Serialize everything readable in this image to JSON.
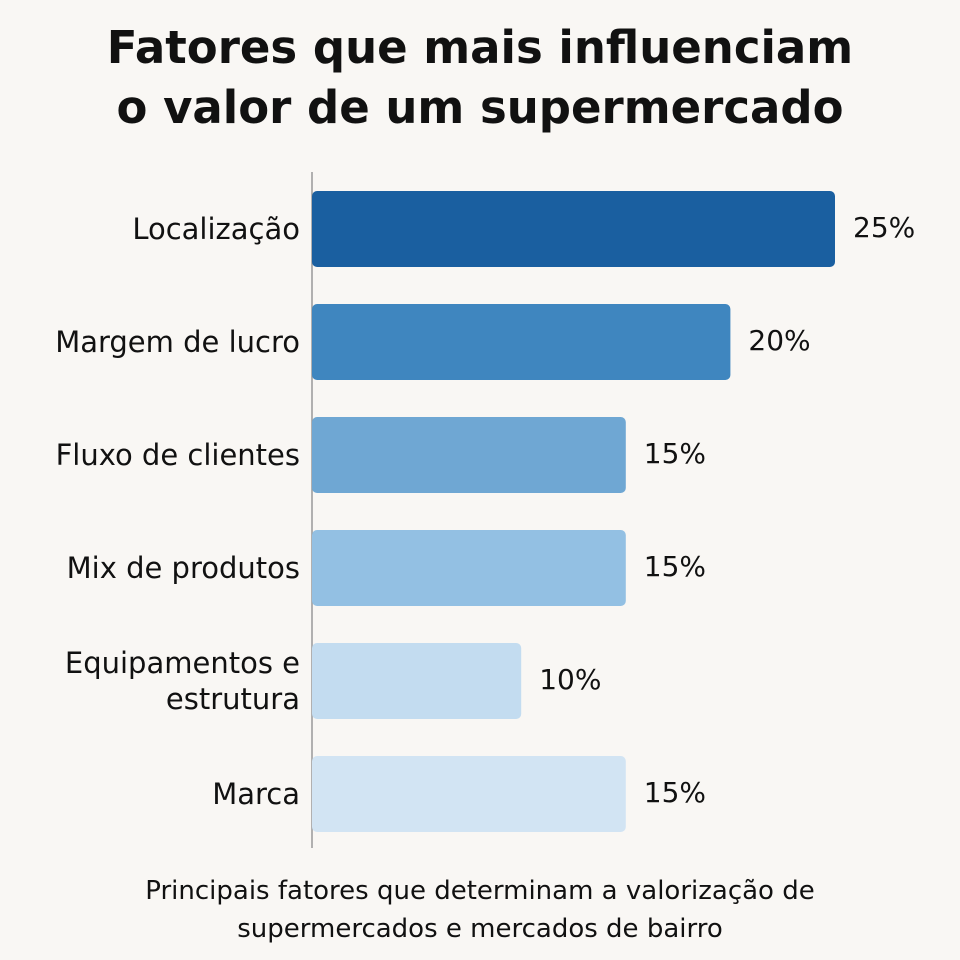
{
  "chart_data": {
    "type": "bar",
    "orientation": "horizontal",
    "title": "Fatores que mais influenciam o valor de um supermercado",
    "caption": "Principais fatores que determinam a valorização de supermercados e mercados de bairro",
    "categories": [
      "Localização",
      "Margem de lucro",
      "Fluxo de clientes",
      "Mix de produtos",
      "Equipamentos e estrutura",
      "Marca"
    ],
    "values": [
      25,
      20,
      15,
      15,
      10,
      15
    ],
    "value_labels": [
      "25%",
      "20%",
      "15%",
      "15%",
      "10%",
      "15%"
    ],
    "colors": [
      "#1a5fa0",
      "#3f86bf",
      "#6fa7d3",
      "#93c0e3",
      "#c3dcf0",
      "#d2e4f3"
    ]
  }
}
